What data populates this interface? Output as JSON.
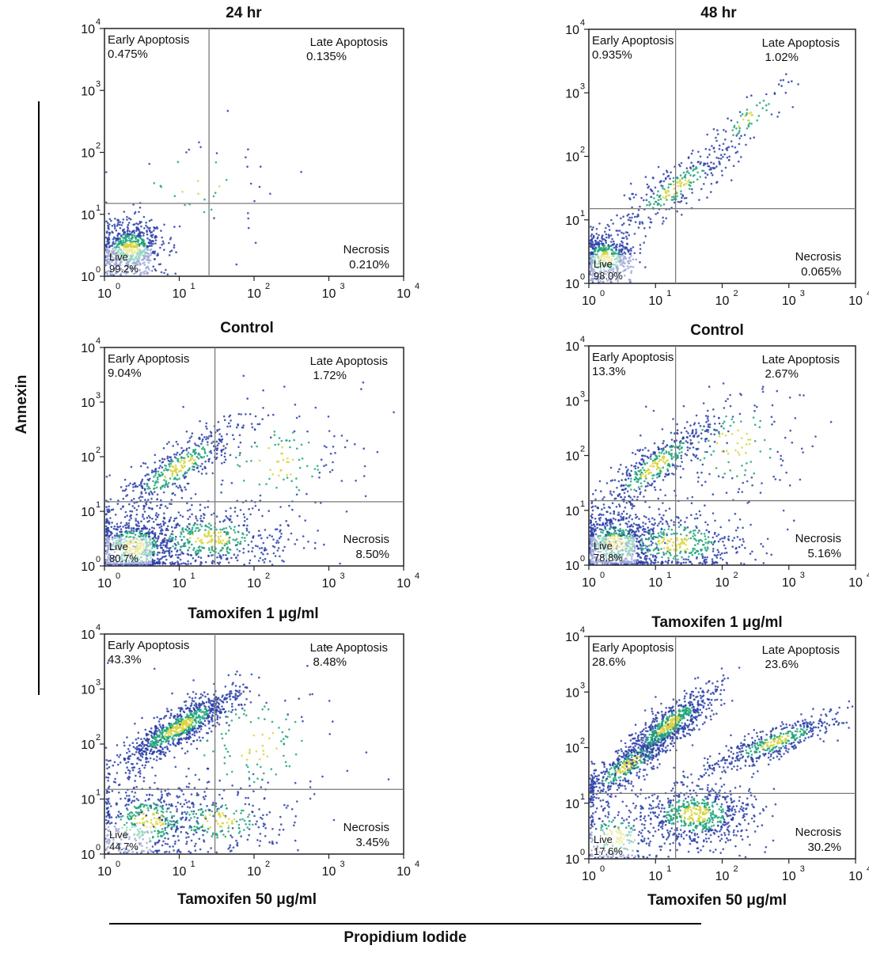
{
  "figure": {
    "col_titles": [
      "24 hr",
      "48 hr"
    ],
    "y_axis_label": "Annexin",
    "x_axis_label": "Propidium Iodide",
    "tick_labels": [
      "10",
      "10",
      "10",
      "10",
      "10"
    ],
    "tick_exponents": [
      "0",
      "1",
      "2",
      "3",
      "4"
    ]
  },
  "quadrant_names": {
    "early": "Early Apoptosis",
    "late": "Late Apoptosis",
    "necrosis": "Necrosis",
    "live": "Live"
  },
  "colors": {
    "dot": "#2b3fa8",
    "dense": "#1fa37a",
    "hot": "#d8d437",
    "gate": "#7a7a7a"
  },
  "chart_data": [
    {
      "type": "scatter",
      "title": "Control",
      "timepoint": "24 hr",
      "xlabel": "Propidium Iodide",
      "ylabel": "Annexin",
      "xlim": [
        1,
        10000
      ],
      "ylim": [
        1,
        10000
      ],
      "scale": "log",
      "gate": {
        "x": 25,
        "y": 15
      },
      "quadrants": {
        "early": "0.475%",
        "late": "0.135%",
        "necrosis": "0.210%",
        "live": "99.2%"
      }
    },
    {
      "type": "scatter",
      "title": "Control",
      "timepoint": "48 hr",
      "xlabel": "Propidium Iodide",
      "ylabel": "Annexin",
      "xlim": [
        1,
        10000
      ],
      "ylim": [
        1,
        10000
      ],
      "scale": "log",
      "gate": {
        "x": 20,
        "y": 15
      },
      "quadrants": {
        "early": "0.935%",
        "late": "1.02%",
        "necrosis": "0.065%",
        "live": "98.0%"
      }
    },
    {
      "type": "scatter",
      "title": "Tamoxifen 1 μg/ml",
      "timepoint": "24 hr",
      "xlabel": "Propidium Iodide",
      "ylabel": "Annexin",
      "xlim": [
        1,
        10000
      ],
      "ylim": [
        1,
        10000
      ],
      "scale": "log",
      "gate": {
        "x": 30,
        "y": 15
      },
      "quadrants": {
        "early": "9.04%",
        "late": "1.72%",
        "necrosis": "8.50%",
        "live": "80.7%"
      }
    },
    {
      "type": "scatter",
      "title": "Tamoxifen 1 μg/ml",
      "timepoint": "48 hr",
      "xlabel": "Propidium Iodide",
      "ylabel": "Annexin",
      "xlim": [
        1,
        10000
      ],
      "ylim": [
        1,
        10000
      ],
      "scale": "log",
      "gate": {
        "x": 20,
        "y": 15
      },
      "quadrants": {
        "early": "13.3%",
        "late": "2.67%",
        "necrosis": "5.16%",
        "live": "78.8%"
      }
    },
    {
      "type": "scatter",
      "title": "Tamoxifen 50 μg/ml",
      "timepoint": "24 hr",
      "xlabel": "Propidium Iodide",
      "ylabel": "Annexin",
      "xlim": [
        1,
        10000
      ],
      "ylim": [
        1,
        10000
      ],
      "scale": "log",
      "gate": {
        "x": 30,
        "y": 15
      },
      "quadrants": {
        "early": "43.3%",
        "late": "8.48%",
        "necrosis": "3.45%",
        "live": "44.7%"
      }
    },
    {
      "type": "scatter",
      "title": "Tamoxifen 50 μg/ml",
      "timepoint": "48 hr",
      "xlabel": "Propidium Iodide",
      "ylabel": "Annexin",
      "xlim": [
        1,
        10000
      ],
      "ylim": [
        1,
        10000
      ],
      "scale": "log",
      "gate": {
        "x": 20,
        "y": 15
      },
      "quadrants": {
        "early": "28.6%",
        "late": "23.6%",
        "necrosis": "30.2%",
        "live": "17.6%"
      }
    }
  ]
}
